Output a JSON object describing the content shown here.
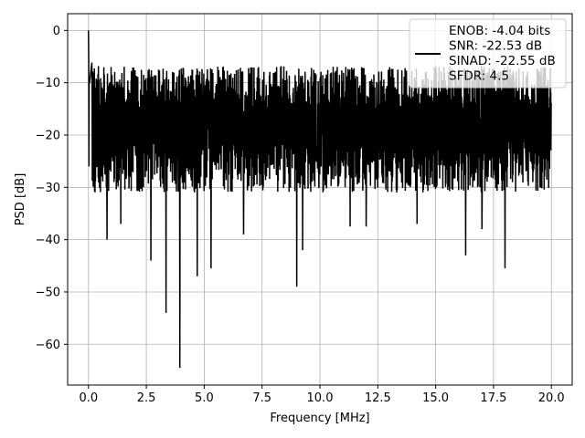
{
  "chart_data": {
    "type": "line",
    "title": "",
    "xlabel": "Frequency [MHz]",
    "ylabel": "PSD [dB]",
    "xlim": [
      -0.9,
      20.9
    ],
    "ylim": [
      -67.8,
      3.2
    ],
    "xticks": [
      0.0,
      2.5,
      5.0,
      7.5,
      10.0,
      12.5,
      15.0,
      17.5,
      20.0
    ],
    "xtick_labels": [
      "0.0",
      "2.5",
      "5.0",
      "7.5",
      "10.0",
      "12.5",
      "15.0",
      "17.5",
      "20.0"
    ],
    "yticks": [
      0,
      -10,
      -20,
      -30,
      -40,
      -50,
      -60
    ],
    "ytick_labels": [
      "0",
      "−10",
      "−20",
      "−30",
      "−40",
      "−50",
      "−60"
    ],
    "grid": true,
    "legend_position": "top-right",
    "legend_entries": [
      "ENOB: -4.04 bits",
      "SNR: -22.53 dB",
      "SINAD: -22.55 dB",
      "SFDR: 4.5"
    ],
    "colors": {
      "line": "#000000",
      "grid": "#b0b0b0",
      "legend_frame": "#cccccc"
    },
    "series": [
      {
        "color": "#000000",
        "x_range": [
          0.0,
          20.0
        ],
        "num_points": 2048,
        "peak": {
          "x": 0.0,
          "y": 0.0
        },
        "noise_band": {
          "upper_db": -10,
          "lower_db": -28,
          "floor_db": -19
        },
        "dips": [
          {
            "x": 2.7,
            "y": -44
          },
          {
            "x": 3.35,
            "y": -54
          },
          {
            "x": 3.95,
            "y": -64.5
          },
          {
            "x": 4.7,
            "y": -47
          },
          {
            "x": 5.3,
            "y": -45.5
          },
          {
            "x": 6.7,
            "y": -39
          },
          {
            "x": 9.0,
            "y": -49
          },
          {
            "x": 9.25,
            "y": -42
          },
          {
            "x": 16.3,
            "y": -43
          },
          {
            "x": 18.0,
            "y": -45.5
          },
          {
            "x": 0.8,
            "y": -40
          },
          {
            "x": 1.4,
            "y": -37
          },
          {
            "x": 11.3,
            "y": -37.5
          },
          {
            "x": 12.0,
            "y": -37.5
          },
          {
            "x": 14.2,
            "y": -37
          },
          {
            "x": 17.0,
            "y": -38
          }
        ]
      }
    ]
  }
}
